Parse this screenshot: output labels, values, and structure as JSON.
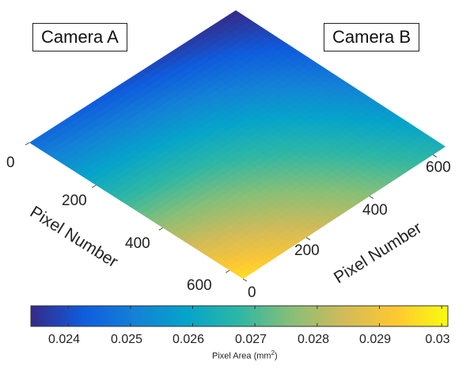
{
  "chart_data": {
    "type": "surface",
    "view": "3D surface viewed from above; axis A runs down-left, axis B runs down-right",
    "annotations": [
      "Camera A",
      "Camera B"
    ],
    "axis_a": {
      "label": "Pixel Number",
      "ticks": [
        "0",
        "200",
        "400",
        "600"
      ],
      "range": [
        0,
        640
      ]
    },
    "axis_b": {
      "label": "Pixel Number",
      "ticks": [
        "0",
        "200",
        "400",
        "600"
      ],
      "range": [
        0,
        640
      ]
    },
    "color_axis": {
      "label": "Pixel Area (mm",
      "label_sup": "2",
      "label_end": ")",
      "ticks": [
        "0.024",
        "0.025",
        "0.026",
        "0.027",
        "0.028",
        "0.029",
        "0.03"
      ],
      "tick_values": [
        0.024,
        0.025,
        0.026,
        0.027,
        0.028,
        0.029,
        0.03
      ],
      "range": [
        0.0234,
        0.0301
      ],
      "colormap": "parula"
    },
    "surface_values": {
      "corner_a0_b640": 0.0234,
      "corner_a0_b0": 0.0246,
      "corner_a640_b640": 0.0264,
      "corner_a640_b0": 0.0297
    }
  },
  "colors": {
    "parula": [
      "#352a87",
      "#0f5cdd",
      "#1481d6",
      "#06a4ca",
      "#2eb7a4",
      "#87bf77",
      "#d1bb59",
      "#fec832",
      "#f9fb0e"
    ]
  }
}
